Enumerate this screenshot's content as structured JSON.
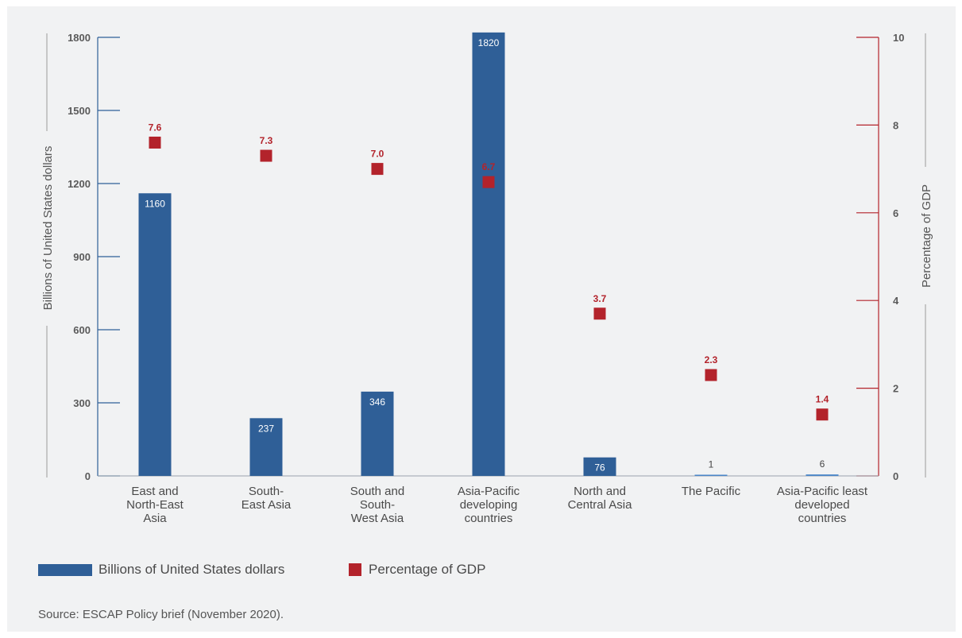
{
  "chart_data": {
    "type": "bar",
    "categories": [
      [
        "East and",
        "North-East",
        "Asia"
      ],
      [
        "South-",
        "East Asia"
      ],
      [
        "South and",
        "South-",
        "West Asia"
      ],
      [
        "Asia-Pacific",
        "developing",
        "countries"
      ],
      [
        "North and",
        "Central Asia"
      ],
      [
        "The Pacific"
      ],
      [
        "Asia-Pacific least",
        "developed",
        "countries"
      ]
    ],
    "series": [
      {
        "name": "Billions of United States dollars",
        "kind": "bar",
        "axis": "left",
        "color": "#2f5f97",
        "values": [
          1160,
          237,
          346,
          1820,
          76,
          1,
          6
        ],
        "labels": [
          "1160",
          "237",
          "346",
          "1820",
          "76",
          "1",
          "6"
        ]
      },
      {
        "name": "Percentage of GDP",
        "kind": "marker",
        "axis": "right",
        "color": "#b3232b",
        "values": [
          7.6,
          7.3,
          7.0,
          6.7,
          3.7,
          2.3,
          1.4
        ],
        "labels": [
          "7.6",
          "7.3",
          "7.0",
          "6.7",
          "3.7",
          "2.3",
          "1.4"
        ]
      }
    ],
    "ylabel": "Billions of United States dollars",
    "y2label": "Percentage of GDP",
    "ylim": [
      0,
      1800
    ],
    "y2lim": [
      0,
      10
    ],
    "yticks": [
      0,
      300,
      600,
      900,
      1200,
      1500,
      1800
    ],
    "y2ticks": [
      0,
      2,
      4,
      6,
      8,
      10
    ],
    "grid": false,
    "legend_position": "bottom-left",
    "colors": {
      "left_axis": "#2f5f97",
      "right_axis": "#b3232b",
      "background": "#f1f2f3"
    }
  },
  "legend": {
    "bars_label": "Billions of United States dollars",
    "markers_label": "Percentage of GDP"
  },
  "source": "Source: ESCAP Policy brief (November 2020)."
}
